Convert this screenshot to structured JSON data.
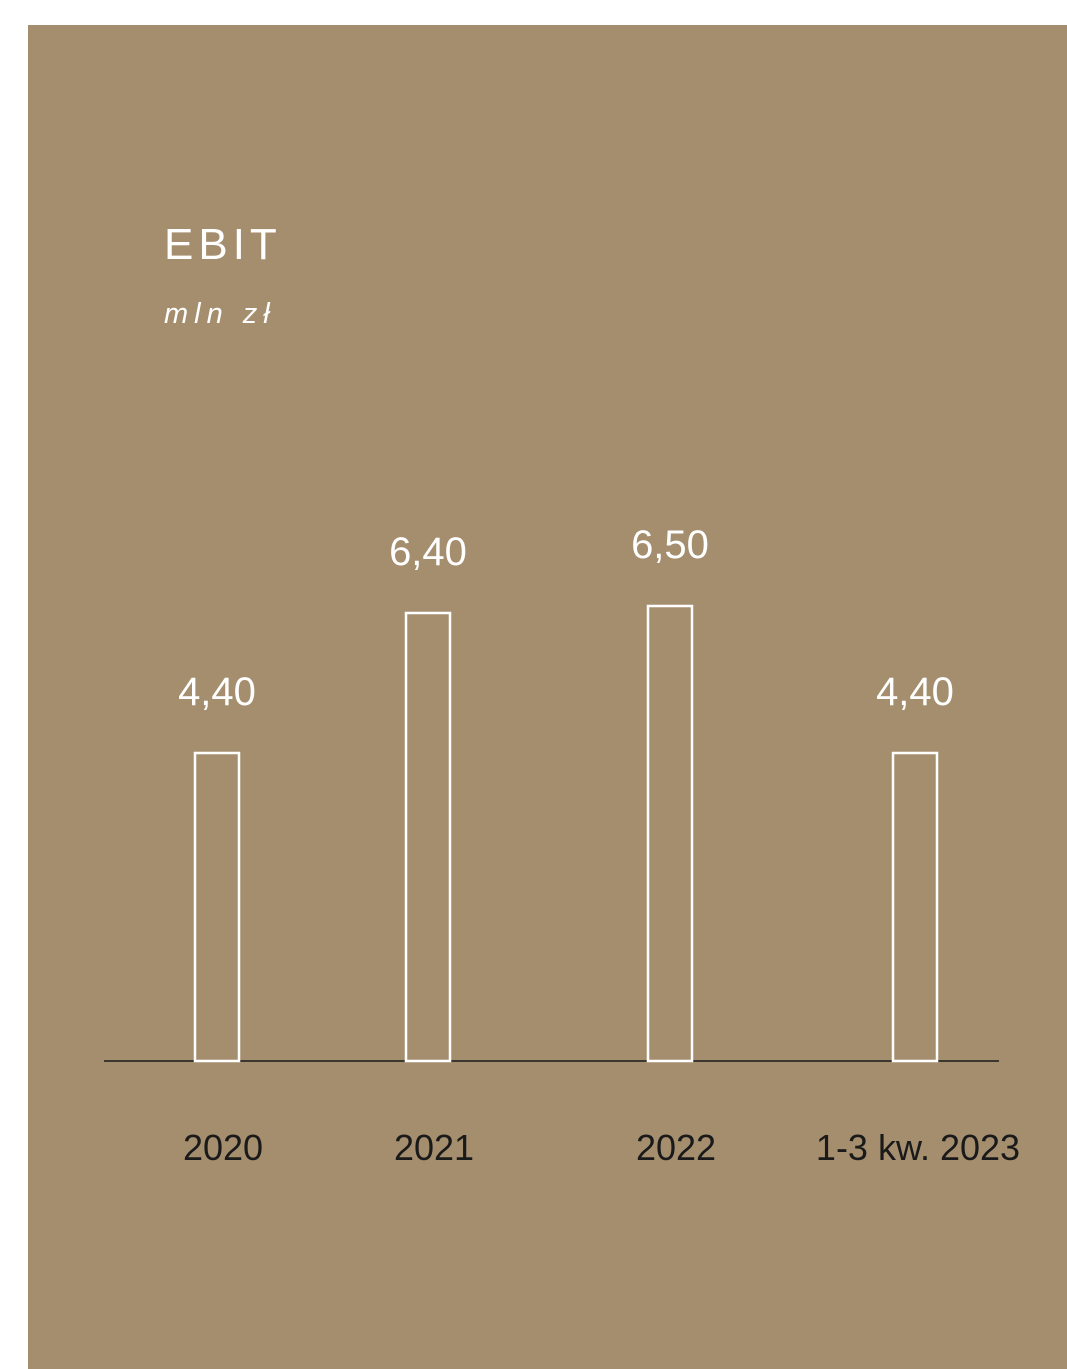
{
  "chart_data": {
    "type": "bar",
    "title": "EBIT",
    "subtitle": "mln zł",
    "categories": [
      "2020",
      "2021",
      "2022",
      "1-3 kw. 2023"
    ],
    "values": [
      4.4,
      6.4,
      6.5,
      4.4
    ],
    "value_labels": [
      "4,40",
      "6,40",
      "6,50",
      "4,40"
    ],
    "ylim": [
      0,
      6.5
    ],
    "grid": false,
    "legend": "none",
    "colors": {
      "background": "#a58e6e",
      "bar_stroke": "#ffffff",
      "axis": "#1a1a1a",
      "category_text": "#1a1a1a",
      "value_text": "#ffffff"
    }
  }
}
